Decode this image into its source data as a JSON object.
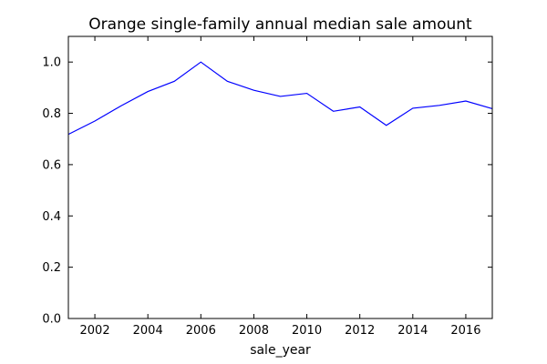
{
  "chart_data": {
    "type": "line",
    "title": "Orange single-family annual median sale amount",
    "xlabel": "sale_year",
    "ylabel": "",
    "xlim": [
      2001,
      2017
    ],
    "ylim": [
      0.0,
      1.1
    ],
    "x_ticks": [
      2002,
      2004,
      2006,
      2008,
      2010,
      2012,
      2014,
      2016
    ],
    "y_ticks": [
      0.0,
      0.2,
      0.4,
      0.6,
      0.8,
      1.0
    ],
    "y_tick_labels": [
      "0.0",
      "0.2",
      "0.4",
      "0.6",
      "0.8",
      "1.0"
    ],
    "grid": false,
    "legend": false,
    "series": [
      {
        "color": "#0000ff",
        "x": [
          2001,
          2002,
          2003,
          2004,
          2005,
          2006,
          2007,
          2008,
          2009,
          2010,
          2011,
          2012,
          2013,
          2014,
          2015,
          2016,
          2017
        ],
        "y": [
          0.718,
          0.77,
          0.83,
          0.885,
          0.925,
          1.0,
          0.925,
          0.89,
          0.866,
          0.878,
          0.808,
          0.825,
          0.753,
          0.82,
          0.831,
          0.848,
          0.818
        ]
      }
    ]
  }
}
